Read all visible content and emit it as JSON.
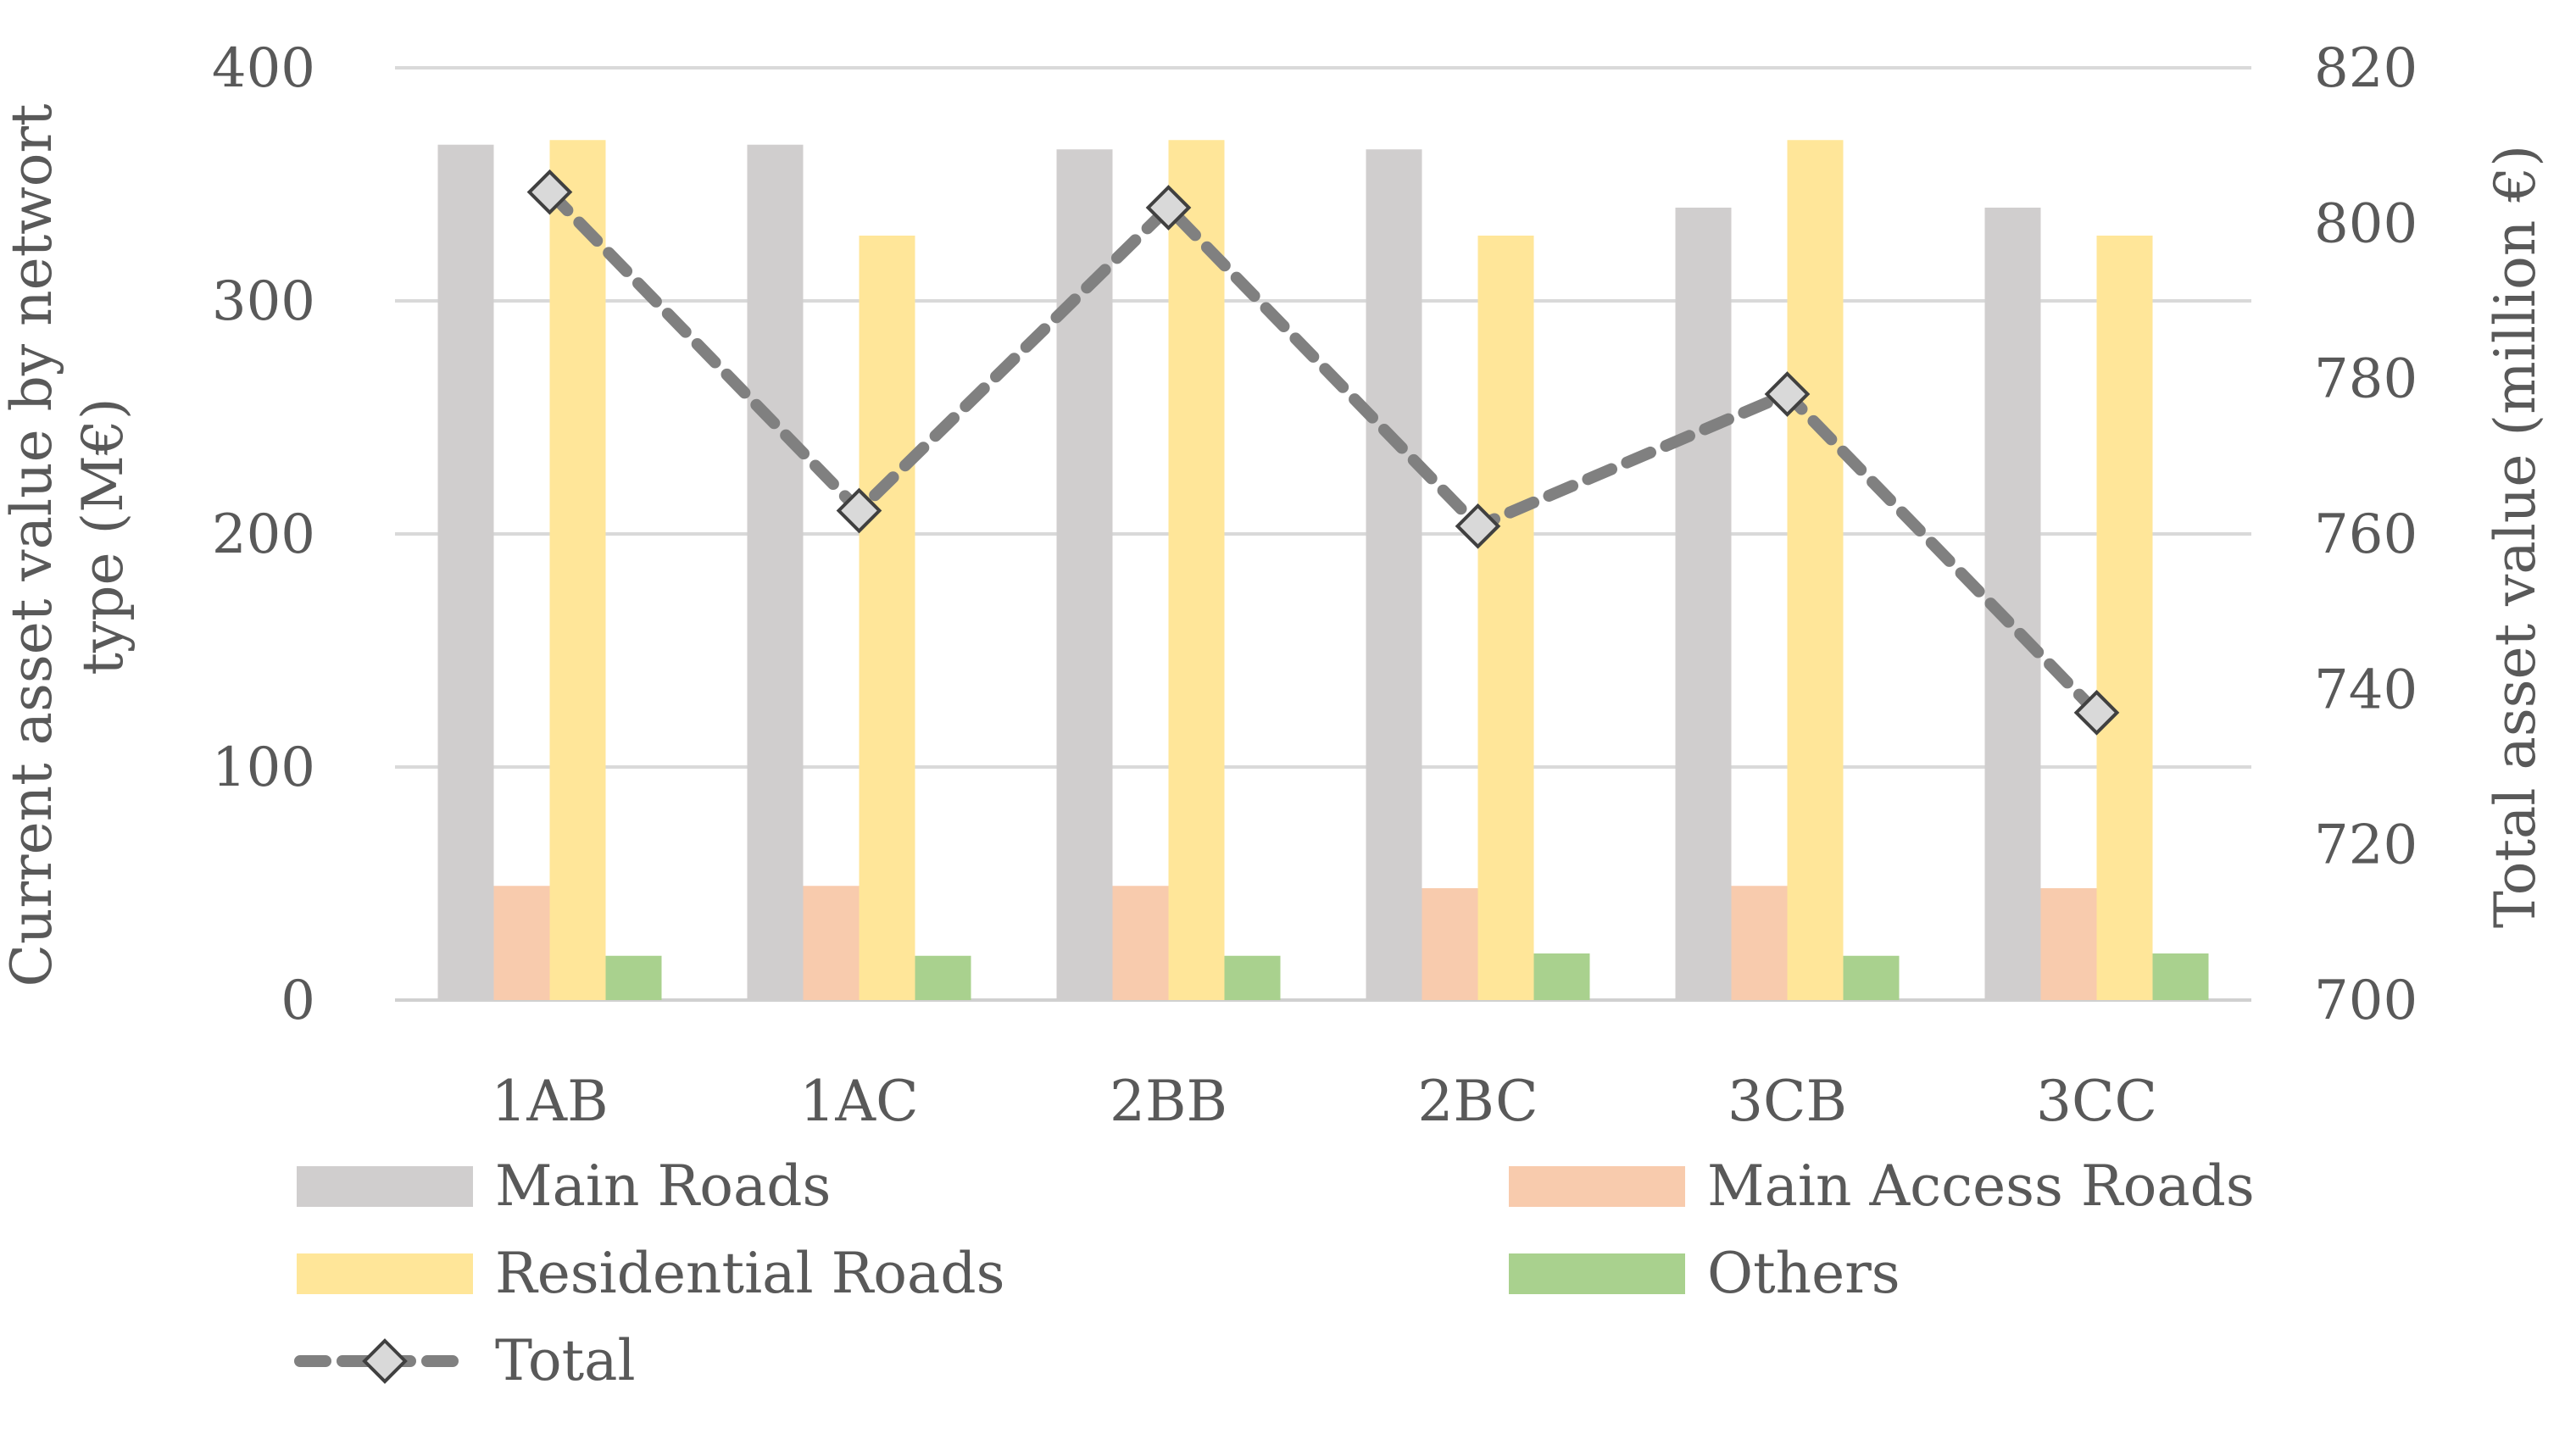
{
  "chart_data": {
    "type": "bar",
    "categories": [
      "1AB",
      "1AC",
      "2BB",
      "2BC",
      "3CB",
      "3CC"
    ],
    "series": [
      {
        "name": "Main Roads",
        "axis": "left",
        "color": "#d0cece",
        "values": [
          367,
          367,
          365,
          365,
          340,
          340
        ]
      },
      {
        "name": "Main Access Roads",
        "axis": "left",
        "color": "#f8cbad",
        "values": [
          49,
          49,
          49,
          48,
          49,
          48
        ]
      },
      {
        "name": "Residential Roads",
        "axis": "left",
        "color": "#ffe699",
        "values": [
          369,
          328,
          369,
          328,
          369,
          328
        ]
      },
      {
        "name": "Others",
        "axis": "left",
        "color": "#a9d18e",
        "values": [
          19,
          19,
          19,
          20,
          19,
          20
        ]
      }
    ],
    "line_series": {
      "name": "Total",
      "type": "line",
      "axis": "right",
      "line_color": "#808080",
      "marker_color": "#d9d9d9",
      "values": [
        804,
        763,
        802,
        761,
        778,
        737
      ]
    },
    "y_left": {
      "label_line1": "Current asset value by networt",
      "label_line2": "type  (M€)",
      "ylim": [
        0,
        400
      ],
      "ticks": [
        0,
        100,
        200,
        300,
        400
      ]
    },
    "y_right": {
      "label": "Total asset value  (million €)",
      "ylim": [
        700,
        820
      ],
      "ticks": [
        700,
        720,
        740,
        760,
        780,
        800,
        820
      ]
    },
    "grid": true,
    "legend": {
      "position": "bottom",
      "items": [
        {
          "label": "Main Roads",
          "series": "Main Roads"
        },
        {
          "label": "Main Access Roads",
          "series": "Main Access Roads"
        },
        {
          "label": "Residential Roads",
          "series": "Residential Roads"
        },
        {
          "label": "Others",
          "series": "Others"
        },
        {
          "label": "Total",
          "series": "Total"
        }
      ]
    }
  }
}
